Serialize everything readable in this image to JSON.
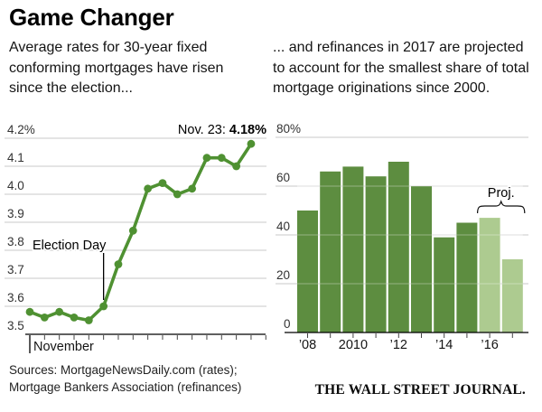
{
  "header": {
    "title": "Game Changer"
  },
  "left_panel": {
    "description": "Average rates for 30-year fixed conforming mortgages have risen since the election..."
  },
  "right_panel": {
    "description": "... and refinances in 2017 are projected to account for the smallest share of total mortgage originations since 2000."
  },
  "chart_data": [
    {
      "type": "line",
      "x_axis_label": "November",
      "y_tick_labels": [
        "4.2%",
        "4.1",
        "4.0",
        "3.9",
        "3.8",
        "3.7",
        "3.6",
        "3.5"
      ],
      "ylim": [
        3.5,
        4.2
      ],
      "grid": true,
      "values": [
        3.58,
        3.56,
        3.58,
        3.56,
        3.55,
        3.6,
        3.75,
        3.87,
        4.02,
        4.04,
        4.0,
        4.02,
        4.13,
        4.13,
        4.1,
        4.18
      ],
      "election_day_index": 5,
      "annotations": {
        "election_label": "Election Day",
        "latest_label_prefix": "Nov. 23: ",
        "latest_label_value": "4.18%"
      },
      "line_color": "#4f9132"
    },
    {
      "type": "bar",
      "categories": [
        "2008",
        "2009",
        "2010",
        "2011",
        "2012",
        "2013",
        "2014",
        "2015",
        "2016",
        "2017"
      ],
      "values": [
        50,
        66,
        68,
        64,
        70,
        60,
        39,
        45,
        47,
        30
      ],
      "projected_from_index": 8,
      "x_tick_labels": [
        "’08",
        "2010",
        "’12",
        "’14",
        "’16"
      ],
      "x_tick_bar_indexes": [
        0,
        2,
        4,
        6,
        8
      ],
      "y_tick_labels": [
        "80%",
        "60",
        "40",
        "20",
        "0"
      ],
      "ylim": [
        0,
        80
      ],
      "grid": true,
      "proj_label": "Proj.",
      "bar_color": "#5d8d40",
      "projected_bar_color": "#adcb90"
    }
  ],
  "footer": {
    "sources_line1": "Sources: MortgageNewsDaily.com (rates);",
    "sources_line2": "Mortgage Bankers Association (refinances)",
    "brand": "THE WALL STREET JOURNAL."
  }
}
